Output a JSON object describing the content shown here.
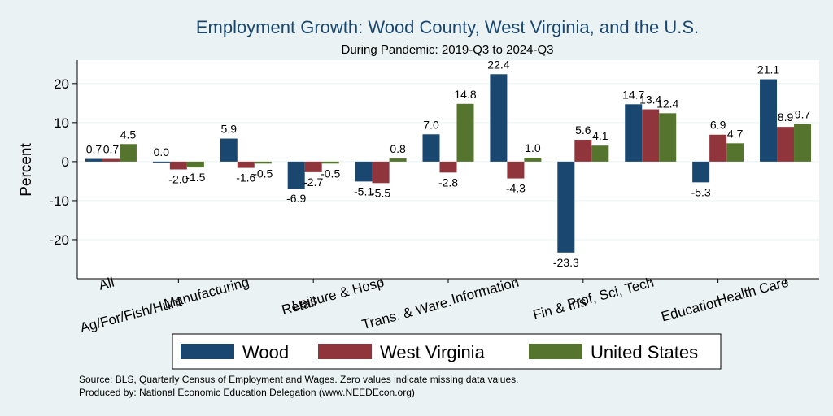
{
  "chart_data": {
    "type": "bar",
    "title": "Employment Growth: Wood County, West Virginia, and the U.S.",
    "subtitle": "During Pandemic: 2019-Q3 to 2024-Q3",
    "ylabel": "Percent",
    "xlabel": "",
    "ylim": [
      -30,
      26
    ],
    "yticks": [
      -20,
      -10,
      0,
      10,
      20
    ],
    "ytick_labels": [
      "-20",
      "-10",
      "0",
      "10",
      "20"
    ],
    "grid": true,
    "legend_position": "bottom",
    "categories": [
      "All",
      "Ag/For/Fish/Hunt",
      "Manufacturing",
      "Retail",
      "Leisure & Hosp",
      "Trans. & Ware.",
      "Information",
      "Fin & Ins",
      "Prof, Sci, Tech",
      "Education",
      "Health Care"
    ],
    "series": [
      {
        "name": "Wood",
        "color": "#1a476f",
        "values": [
          0.7,
          0.0,
          5.9,
          -6.9,
          -5.1,
          7.0,
          22.4,
          -23.3,
          14.7,
          -5.3,
          21.1
        ],
        "labels": [
          "0.7",
          "0.0",
          "5.9",
          "-6.9",
          "-5.1",
          "7.0",
          "22.4",
          "-23.3",
          "14.7",
          "-5.3",
          "21.1"
        ]
      },
      {
        "name": "West Virginia",
        "color": "#90353b",
        "values": [
          0.7,
          -2.0,
          -1.6,
          -2.7,
          -5.5,
          -2.8,
          -4.3,
          5.6,
          13.4,
          6.9,
          8.9
        ],
        "labels": [
          "0.7",
          "-2.0",
          "-1.6",
          "-2.7",
          "-5.5",
          "-2.8",
          "-4.3",
          "5.6",
          "13.4",
          "6.9",
          "8.9"
        ]
      },
      {
        "name": "United States",
        "color": "#55752f",
        "values": [
          4.5,
          -1.5,
          -0.5,
          -0.5,
          0.8,
          14.8,
          1.0,
          4.1,
          12.4,
          4.7,
          9.7
        ],
        "labels": [
          "4.5",
          "-1.5",
          "-0.5",
          "-0.5",
          "0.8",
          "14.8",
          "1.0",
          "4.1",
          "12.4",
          "4.7",
          "9.7"
        ]
      }
    ]
  },
  "footnotes": {
    "source": "Source: BLS, Quarterly Census of Employment and Wages. Zero values indicate missing data values.",
    "produced_by": "Produced by: National Economic Education Delegation (www.NEEDEcon.org)"
  }
}
